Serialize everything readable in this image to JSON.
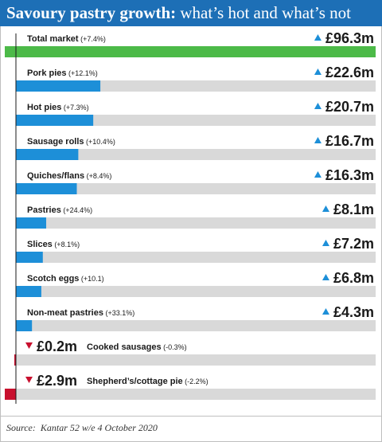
{
  "header": {
    "title_bold": "Savoury pastry growth:",
    "title_rest": " what’s hot and what’s not"
  },
  "footer": {
    "source_label": "Source:",
    "source_text": "Kantar 52 w/e 4 October 2020"
  },
  "chart_data": {
    "type": "bar",
    "orientation": "horizontal",
    "title": "Savoury pastry growth: what’s hot and what’s not",
    "unit": "£m",
    "series": [
      {
        "category": "Total market",
        "change": "(+7.4%)",
        "value": 96.3,
        "label": "£96.3m",
        "direction": "up"
      },
      {
        "category": "Pork pies",
        "change": "(+12.1%)",
        "value": 22.6,
        "label": "£22.6m",
        "direction": "up"
      },
      {
        "category": "Hot pies",
        "change": "(+7.3%)",
        "value": 20.7,
        "label": "£20.7m",
        "direction": "up"
      },
      {
        "category": "Sausage rolls",
        "change": "(+10.4%)",
        "value": 16.7,
        "label": "£16.7m",
        "direction": "up"
      },
      {
        "category": "Quiches/flans",
        "change": "(+8.4%)",
        "value": 16.3,
        "label": "£16.3m",
        "direction": "up"
      },
      {
        "category": "Pastries",
        "change": "(+24.4%)",
        "value": 8.1,
        "label": "£8.1m",
        "direction": "up"
      },
      {
        "category": "Slices",
        "change": "(+8.1%)",
        "value": 7.2,
        "label": "£7.2m",
        "direction": "up"
      },
      {
        "category": "Scotch eggs",
        "change": "(+10.1)",
        "value": 6.8,
        "label": "£6.8m",
        "direction": "up"
      },
      {
        "category": "Non-meat pastries",
        "change": "(+33.1%)",
        "value": 4.3,
        "label": "£4.3m",
        "direction": "up"
      },
      {
        "category": "Cooked sausages",
        "change": "(-0.3%)",
        "value": -0.2,
        "label": "£0.2m",
        "direction": "down"
      },
      {
        "category": "Shepherd’s/cottage pie",
        "change": "(-2.2%)",
        "value": -2.9,
        "label": "£2.9m",
        "direction": "down"
      }
    ],
    "colors": {
      "total": "#4cba48",
      "up": "#1d8fd8",
      "down": "#c8102e",
      "track": "#d9d9d9",
      "header": "#1d6fb6"
    }
  }
}
